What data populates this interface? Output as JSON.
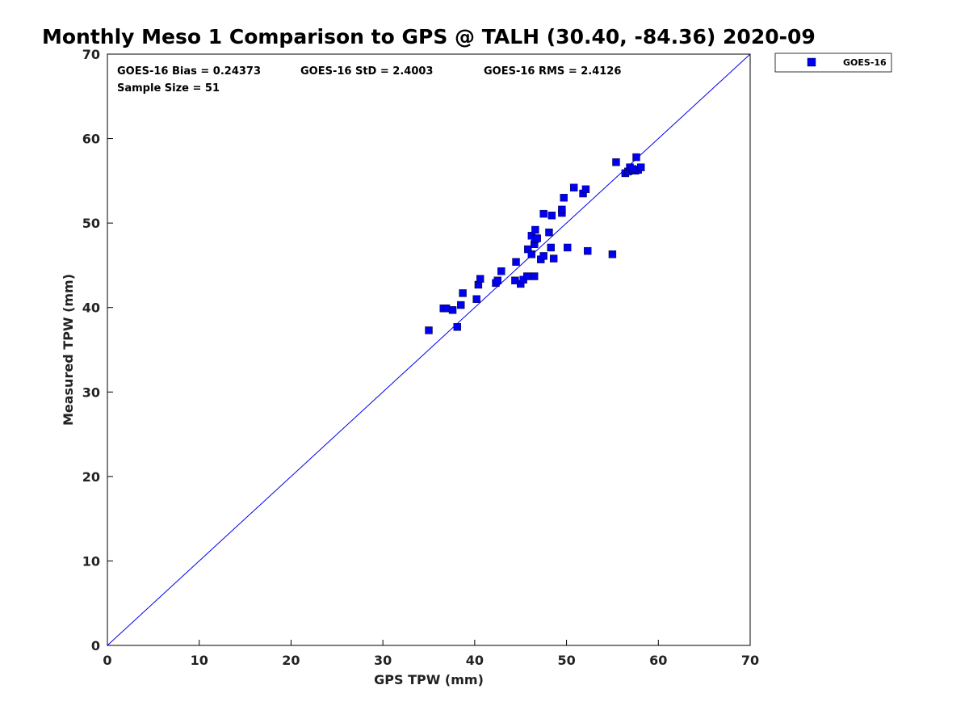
{
  "chart_data": {
    "type": "scatter",
    "title": "Monthly Meso 1 Comparison to GPS @ TALH (30.40, -84.36) 2020-09",
    "xlabel": "GPS TPW (mm)",
    "ylabel": "Measured TPW (mm)",
    "xlim": [
      0,
      70
    ],
    "ylim": [
      0,
      70
    ],
    "xticks": [
      "0",
      "10",
      "20",
      "30",
      "40",
      "50",
      "60",
      "70"
    ],
    "yticks": [
      "0",
      "10",
      "20",
      "30",
      "40",
      "50",
      "60",
      "70"
    ],
    "grid": false,
    "legend": {
      "placement": "outside-top-right",
      "entries": [
        "GOES-16"
      ]
    },
    "stats": {
      "bias": "GOES-16 Bias = 0.24373",
      "std": "GOES-16 StD = 2.4003",
      "rms": "GOES-16 RMS = 2.4126",
      "sample": "Sample Size = 51"
    },
    "reference_line": {
      "from": [
        0,
        0
      ],
      "to": [
        70,
        70
      ]
    },
    "series_color": "#0000ee",
    "series": [
      {
        "name": "GOES-16",
        "points": [
          [
            35.0,
            37.3
          ],
          [
            36.6,
            39.9
          ],
          [
            36.9,
            39.9
          ],
          [
            37.6,
            39.7
          ],
          [
            38.1,
            37.7
          ],
          [
            38.5,
            40.3
          ],
          [
            38.7,
            41.7
          ],
          [
            40.2,
            41.0
          ],
          [
            40.4,
            42.7
          ],
          [
            40.6,
            43.4
          ],
          [
            42.3,
            42.9
          ],
          [
            42.5,
            43.2
          ],
          [
            42.9,
            44.3
          ],
          [
            44.4,
            43.2
          ],
          [
            44.5,
            45.4
          ],
          [
            45.0,
            42.8
          ],
          [
            45.3,
            43.3
          ],
          [
            45.7,
            43.7
          ],
          [
            45.8,
            46.9
          ],
          [
            46.2,
            46.3
          ],
          [
            46.2,
            48.5
          ],
          [
            46.5,
            43.7
          ],
          [
            46.5,
            47.5
          ],
          [
            46.6,
            48.1
          ],
          [
            46.6,
            49.2
          ],
          [
            46.8,
            48.2
          ],
          [
            47.2,
            45.7
          ],
          [
            47.5,
            46.1
          ],
          [
            47.5,
            51.1
          ],
          [
            48.1,
            48.9
          ],
          [
            48.3,
            47.1
          ],
          [
            48.4,
            50.9
          ],
          [
            48.6,
            45.8
          ],
          [
            49.5,
            51.2
          ],
          [
            49.5,
            51.6
          ],
          [
            49.7,
            53.0
          ],
          [
            50.1,
            47.1
          ],
          [
            50.8,
            54.2
          ],
          [
            51.8,
            53.5
          ],
          [
            52.1,
            54.0
          ],
          [
            52.3,
            46.7
          ],
          [
            55.0,
            46.3
          ],
          [
            55.4,
            57.2
          ],
          [
            56.4,
            55.9
          ],
          [
            56.7,
            56.1
          ],
          [
            56.9,
            56.6
          ],
          [
            57.5,
            56.2
          ],
          [
            57.6,
            57.8
          ],
          [
            57.8,
            56.3
          ],
          [
            58.1,
            56.6
          ],
          [
            57.2,
            56.4
          ]
        ]
      }
    ]
  }
}
